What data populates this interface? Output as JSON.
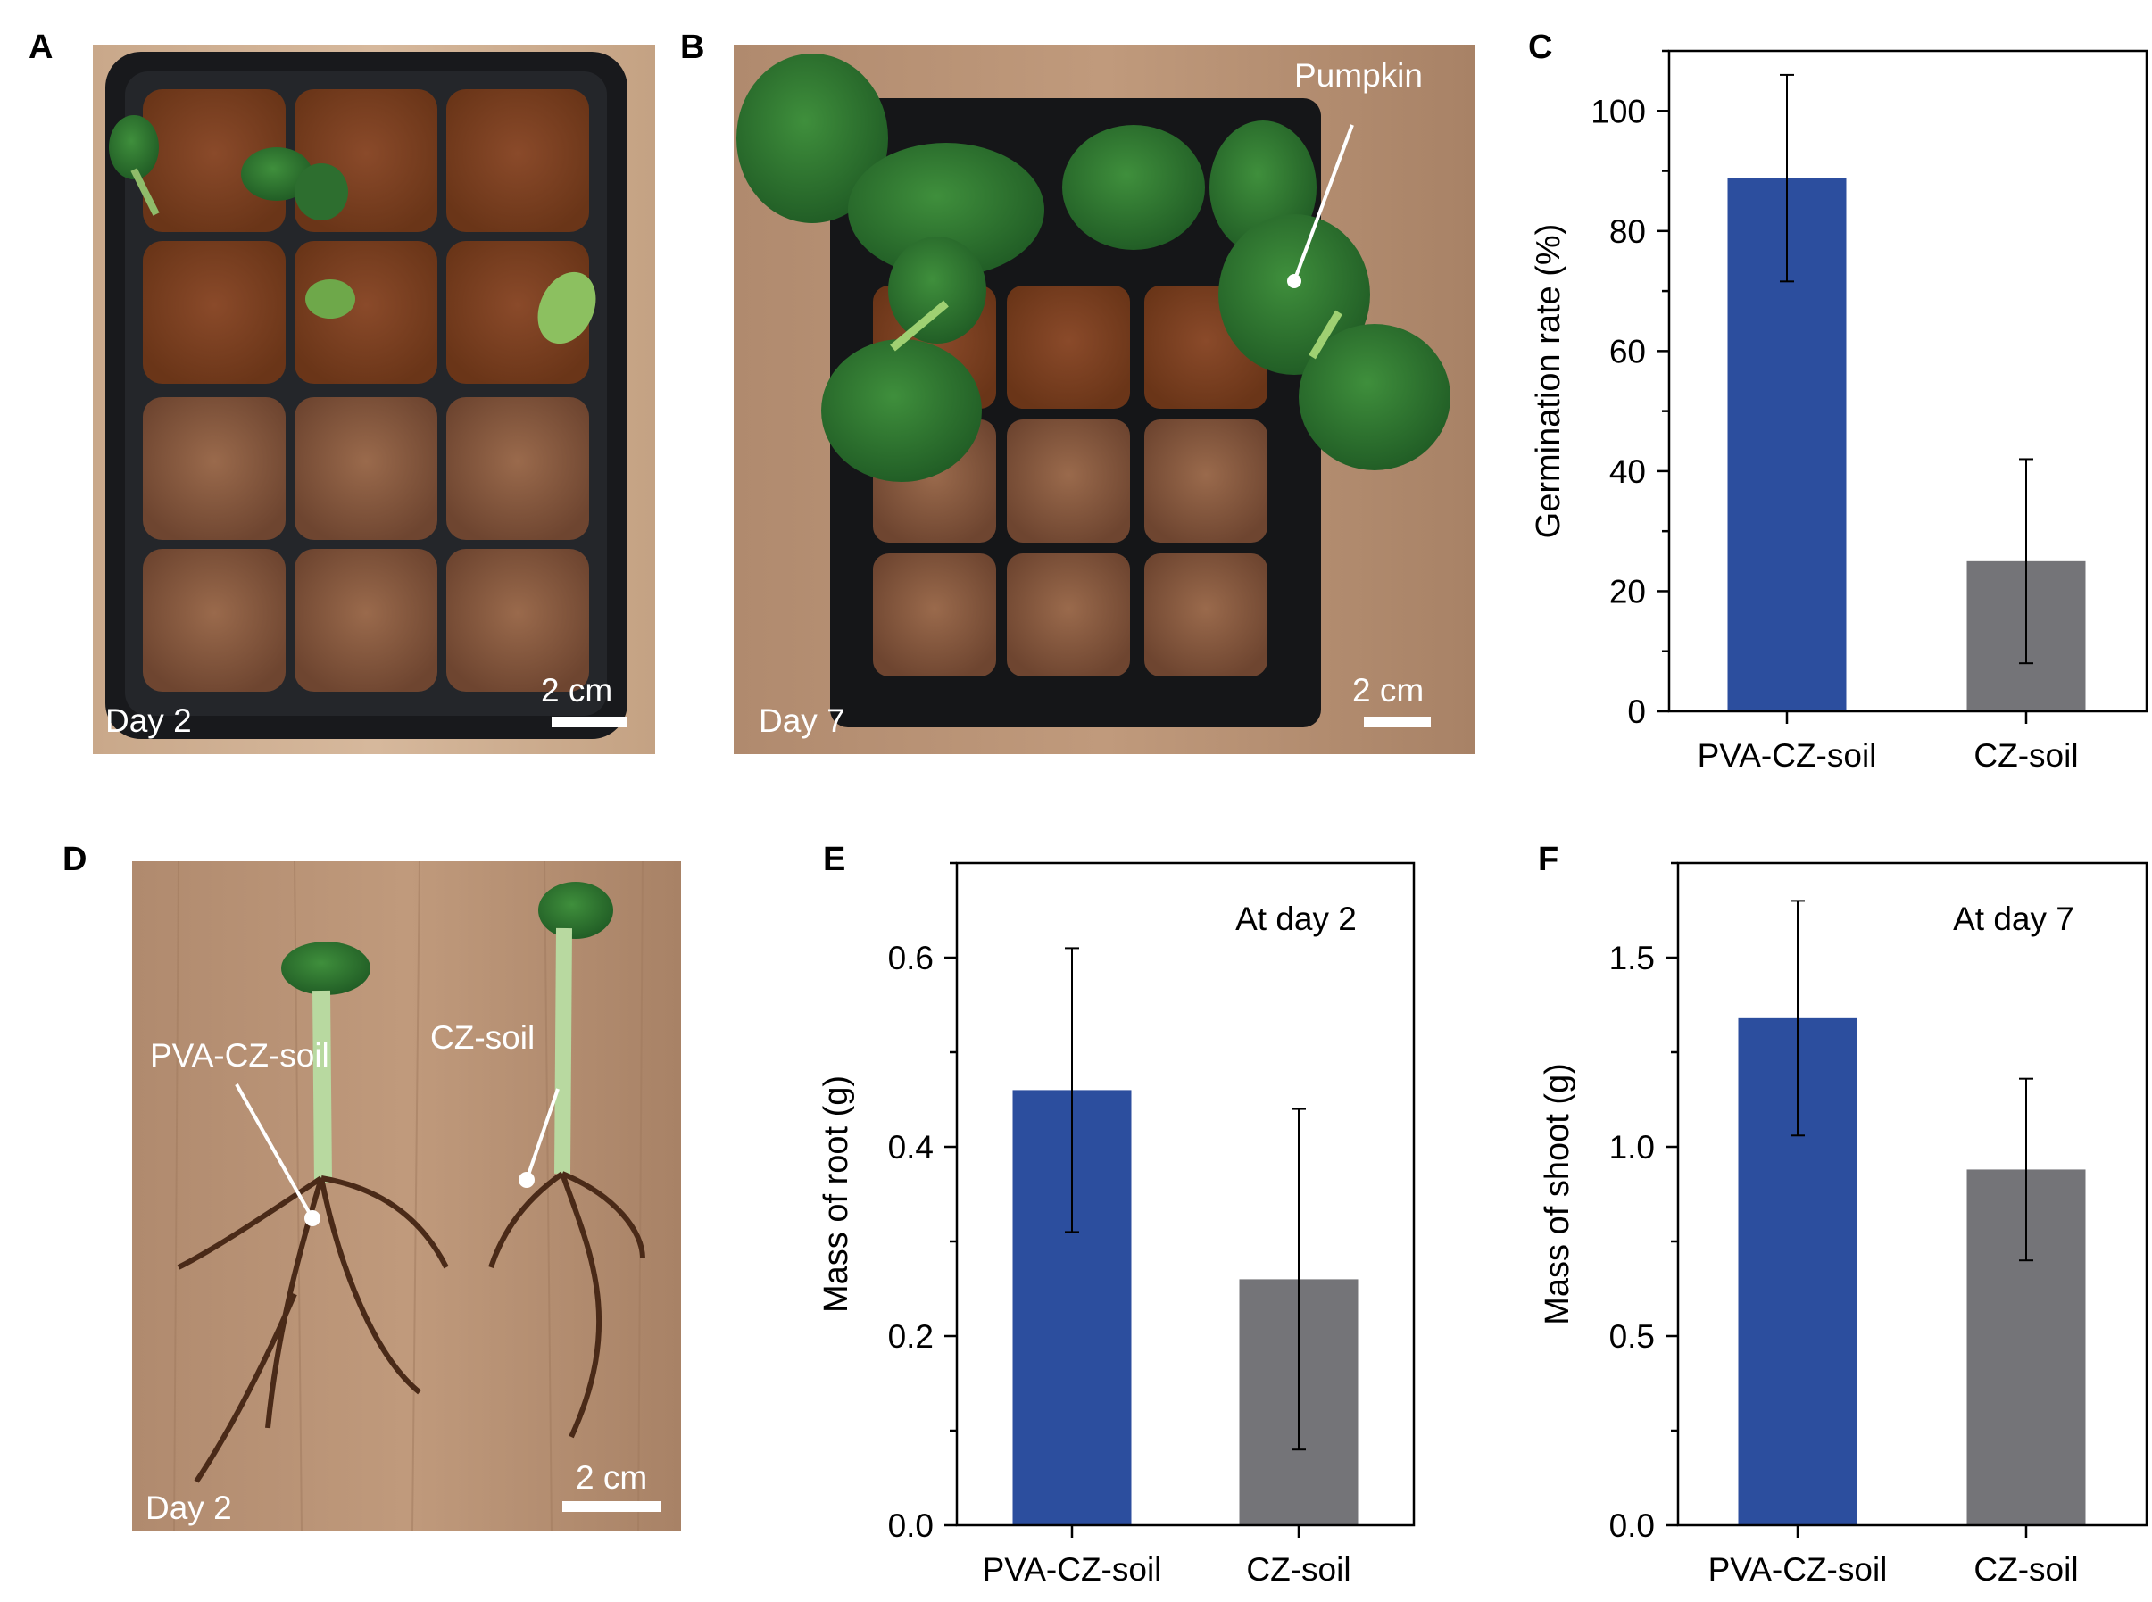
{
  "panels": {
    "A": {
      "letter": "A",
      "day": "Day 2",
      "scale": "2 cm"
    },
    "B": {
      "letter": "B",
      "day": "Day 7",
      "scale": "2 cm",
      "annotation": "Pumpkin"
    },
    "D": {
      "letter": "D",
      "day": "Day 2",
      "scale": "2 cm",
      "label_left": "PVA-CZ-soil",
      "label_right": "CZ-soil"
    }
  },
  "colors": {
    "pva": "#2c4e9e",
    "cz": "#747478"
  },
  "chart_data": [
    {
      "type": "bar",
      "panel": "C",
      "letter": "C",
      "categories": [
        "PVA-CZ-soil",
        "CZ-soil"
      ],
      "values": [
        88.8,
        25.0
      ],
      "errors": [
        17.2,
        17.0
      ],
      "ylabel": "Germination rate (%)",
      "ylim": [
        0,
        110
      ],
      "yticks": [
        0,
        20,
        40,
        60,
        80,
        100
      ],
      "ytick_labels": [
        "0",
        "20",
        "40",
        "60",
        "80",
        "100"
      ],
      "annotation": ""
    },
    {
      "type": "bar",
      "panel": "E",
      "letter": "E",
      "categories": [
        "PVA-CZ-soil",
        "CZ-soil"
      ],
      "values": [
        0.46,
        0.26
      ],
      "errors": [
        0.15,
        0.18
      ],
      "ylabel": "Mass of root (g)",
      "ylim": [
        0,
        0.7
      ],
      "yticks": [
        0,
        0.2,
        0.4,
        0.6
      ],
      "ytick_labels": [
        "0.0",
        "0.2",
        "0.4",
        "0.6"
      ],
      "annotation": "At day 2"
    },
    {
      "type": "bar",
      "panel": "F",
      "letter": "F",
      "categories": [
        "PVA-CZ-soil",
        "CZ-soil"
      ],
      "values": [
        1.34,
        0.94
      ],
      "errors": [
        0.31,
        0.24
      ],
      "ylabel": "Mass of shoot (g)",
      "ylim": [
        0,
        1.75
      ],
      "yticks": [
        0,
        0.5,
        1.0,
        1.5
      ],
      "ytick_labels": [
        "0.0",
        "0.5",
        "1.0",
        "1.5"
      ],
      "annotation": "At day 7"
    }
  ]
}
